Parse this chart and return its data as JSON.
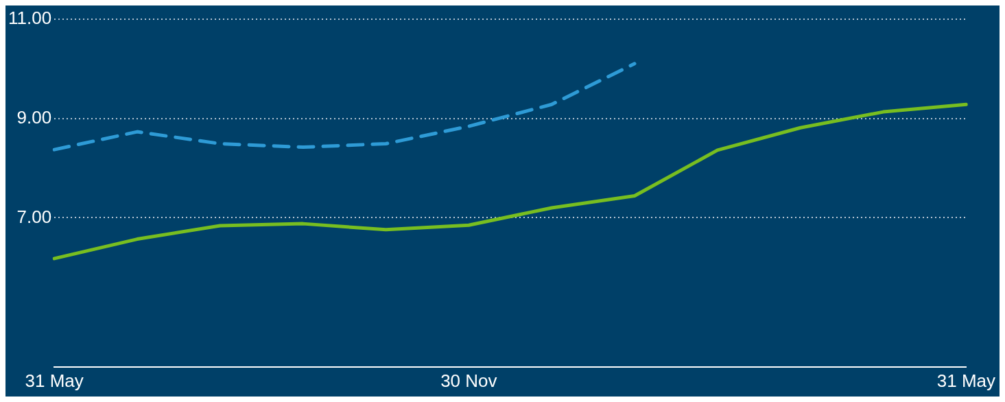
{
  "chart_data": {
    "type": "line",
    "categories": [
      "31 May",
      null,
      null,
      null,
      null,
      "30 Nov",
      null,
      null,
      null,
      null,
      null,
      "31 May"
    ],
    "series": [
      {
        "color": "#78be20",
        "line_style": "solid",
        "values": [
          6.18,
          6.57,
          6.84,
          6.88,
          6.76,
          6.85,
          7.2,
          7.44,
          8.36,
          8.81,
          9.13,
          9.28
        ]
      },
      {
        "color": "#2e9bd6",
        "line_style": "dashed",
        "values": [
          8.37,
          8.73,
          8.49,
          8.42,
          8.49,
          8.84,
          9.28,
          10.1,
          null,
          null,
          null,
          null
        ]
      }
    ],
    "ylim": [
      4,
      11
    ],
    "yticks": [
      {
        "value": 7,
        "label": "7.00"
      },
      {
        "value": 9,
        "label": "9.00"
      },
      {
        "value": 11,
        "label": "11.00"
      }
    ],
    "grid": "y",
    "legend": false,
    "marker": "none"
  }
}
